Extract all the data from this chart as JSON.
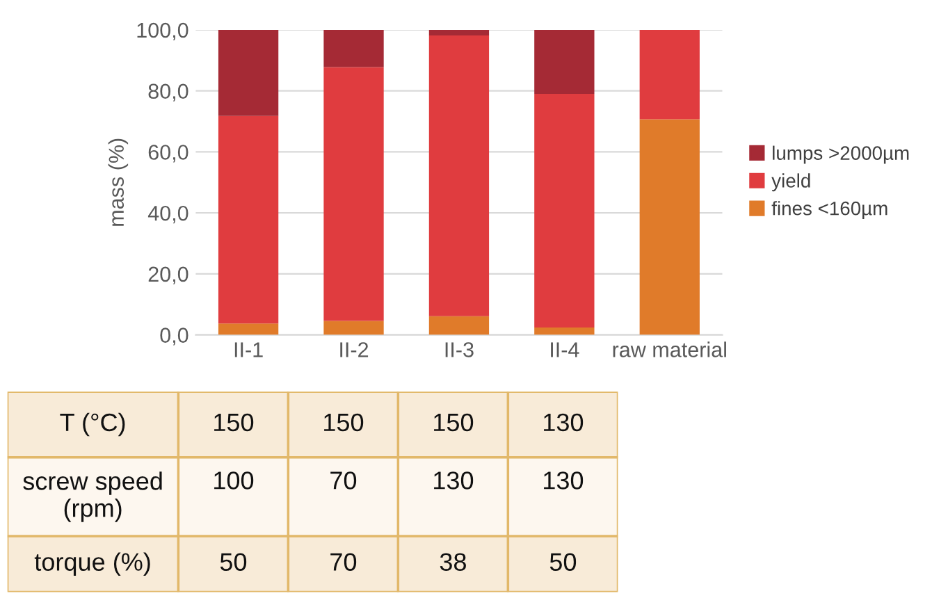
{
  "chart_data": [
    {
      "type": "bar",
      "stacked": true,
      "ylabel": "mass (%)",
      "categories": [
        "II-1",
        "II-2",
        "II-3",
        "II-4",
        "raw material"
      ],
      "series": [
        {
          "name": "fines <160µm",
          "color": "#e07b2a",
          "values": [
            3.7,
            4.6,
            6.1,
            2.4,
            70.7
          ]
        },
        {
          "name": "yield",
          "color": "#e03c3f",
          "values": [
            68.1,
            83.2,
            92.1,
            76.6,
            29.3
          ]
        },
        {
          "name": "lumps >2000µm",
          "color": "#a52a35",
          "values": [
            28.2,
            12.2,
            1.8,
            21.0,
            0
          ]
        }
      ],
      "ylim": [
        0,
        100
      ],
      "yticks": [
        {
          "value": 0,
          "label": "0,0"
        },
        {
          "value": 20,
          "label": "20,0"
        },
        {
          "value": 40,
          "label": "40,0"
        },
        {
          "value": 60,
          "label": "60,0"
        },
        {
          "value": 80,
          "label": "80,0"
        },
        {
          "value": 100,
          "label": "100,0"
        }
      ],
      "grid": "y",
      "legend": "right"
    },
    {
      "type": "other",
      "y_categories": [
        "T (°C)",
        "screw speed\n(rpm)",
        "torque (%)"
      ],
      "cell_labels": [
        [
          "150",
          "150",
          "150",
          "130"
        ],
        [
          "100",
          "70",
          "130",
          "130"
        ],
        [
          "50",
          "70",
          "38",
          "50"
        ]
      ]
    }
  ]
}
